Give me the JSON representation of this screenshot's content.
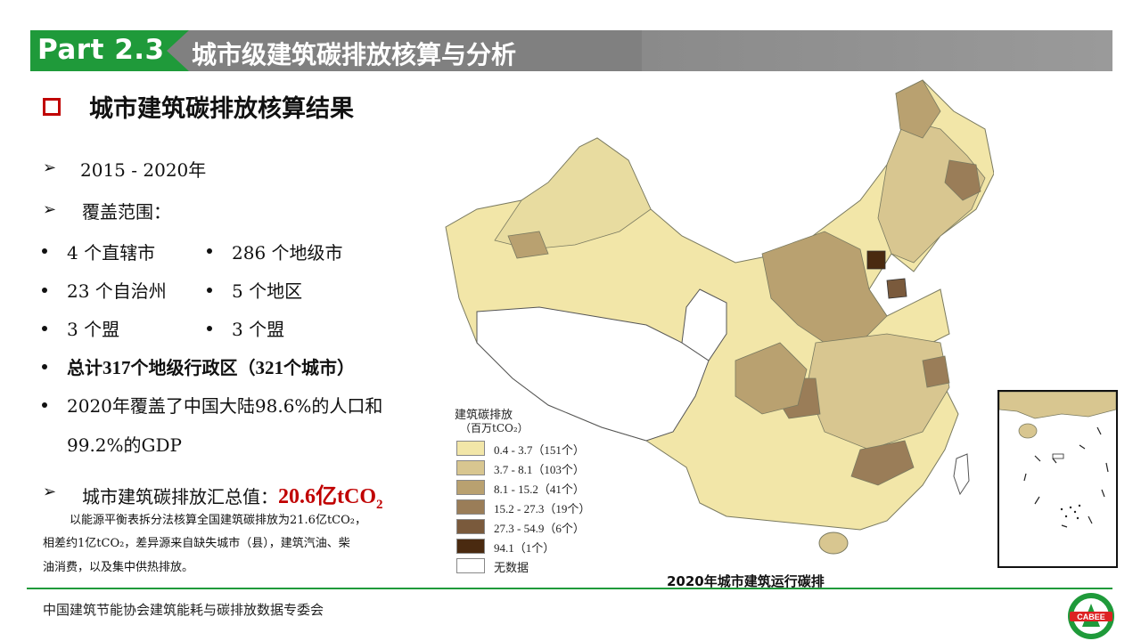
{
  "header": {
    "part": "Part 2.3",
    "title": "城市级建筑碳排放核算与分析"
  },
  "section": {
    "title": "城市建筑碳排放核算结果"
  },
  "bullets": {
    "years": "2015 - 2020年",
    "coverage": "覆盖范围：",
    "c1": "4 个直辖市",
    "c2": "286 个地级市",
    "c3": "23 个自治州",
    "c4": "5 个地区",
    "c5": "3 个盟",
    "c6": "3 个盟",
    "total_pre": "总计",
    "total_num1": "317",
    "total_mid": "个地级行政区（",
    "total_num2": "321",
    "total_post": "个城市）",
    "cover_line1": "2020年覆盖了中国大陆98.6%的人口和",
    "cover_line2": "99.2%的GDP",
    "summary_label": "城市建筑碳排放汇总值：",
    "summary_value": "20.6亿tCO",
    "summary_sub": "2"
  },
  "note": {
    "line1": "以能源平衡表拆分法核算全国建筑碳排放为21.6亿tCO₂，",
    "line2": "相差约1亿tCO₂，差异源来自缺失城市（县），建筑汽油、柴",
    "line3": "油消费，以及集中供热排放。"
  },
  "map": {
    "caption": "2020年城市建筑运行碳排",
    "legend_title": "建筑碳排放",
    "legend_unit": "（百万tCO₂）",
    "legend": [
      {
        "label": "0.4 - 3.7（151个）",
        "color": "#f2e6a8"
      },
      {
        "label": "3.7 - 8.1（103个）",
        "color": "#d8c690"
      },
      {
        "label": "8.1 - 15.2（41个）",
        "color": "#b9a170"
      },
      {
        "label": "15.2 - 27.3（19个）",
        "color": "#9a7d58"
      },
      {
        "label": "27.3 - 54.9（6个）",
        "color": "#7a5a3c"
      },
      {
        "label": "94.1（1个）",
        "color": "#4a2a10"
      },
      {
        "label": "无数据",
        "color": "#ffffff"
      }
    ]
  },
  "footer": {
    "org": "中国建筑节能协会建筑能耗与碳排放数据专委会",
    "logo_text": "CABEE"
  }
}
